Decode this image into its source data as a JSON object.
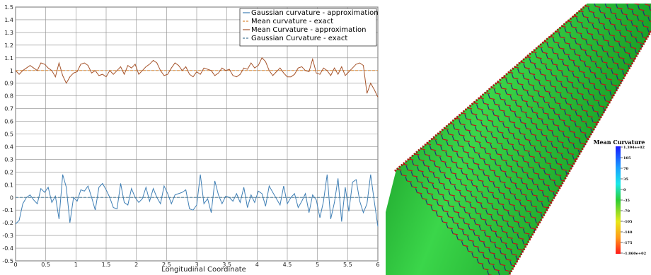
{
  "chart_data": {
    "type": "line",
    "xlabel": "Longitudinal Coordinate",
    "ylabel": "",
    "xlim": [
      0,
      6
    ],
    "ylim": [
      -0.5,
      1.5
    ],
    "x_ticks": [
      "0",
      "0.5",
      "1",
      "1.5",
      "2",
      "2.5",
      "3",
      "3.5",
      "4",
      "4.5",
      "5",
      "5.5",
      "6"
    ],
    "y_ticks": [
      "-0.5",
      "-0.4",
      "-0.3",
      "-0.2",
      "-0.1",
      "0",
      "0.1",
      "0.2",
      "0.3",
      "0.4",
      "0.5",
      "0.6",
      "0.7",
      "0.8",
      "0.9",
      "1",
      "1.1",
      "1.2",
      "1.3",
      "1.4",
      "1.5"
    ],
    "grid": true,
    "legend_position": "top-right",
    "series": [
      {
        "name": "Gaussian curvature - approximation",
        "color": "#3f7fb5",
        "style": "solid",
        "x": [
          0,
          0.06,
          0.12,
          0.18,
          0.24,
          0.3,
          0.36,
          0.42,
          0.48,
          0.54,
          0.6,
          0.66,
          0.72,
          0.78,
          0.84,
          0.9,
          0.96,
          1.02,
          1.08,
          1.14,
          1.2,
          1.26,
          1.32,
          1.38,
          1.44,
          1.5,
          1.56,
          1.62,
          1.68,
          1.74,
          1.8,
          1.86,
          1.92,
          1.98,
          2.04,
          2.1,
          2.16,
          2.22,
          2.28,
          2.34,
          2.4,
          2.46,
          2.52,
          2.58,
          2.64,
          2.7,
          2.76,
          2.82,
          2.88,
          2.94,
          3.0,
          3.06,
          3.12,
          3.18,
          3.24,
          3.3,
          3.36,
          3.42,
          3.48,
          3.54,
          3.6,
          3.66,
          3.72,
          3.78,
          3.84,
          3.9,
          3.96,
          4.02,
          4.08,
          4.14,
          4.2,
          4.26,
          4.32,
          4.38,
          4.44,
          4.5,
          4.56,
          4.62,
          4.68,
          4.74,
          4.8,
          4.86,
          4.92,
          4.98,
          5.04,
          5.1,
          5.16,
          5.22,
          5.28,
          5.34,
          5.4,
          5.46,
          5.52,
          5.58,
          5.64,
          5.7,
          5.76,
          5.82,
          5.88,
          5.94,
          6.0
        ],
        "values": [
          -0.21,
          -0.18,
          -0.05,
          0.0,
          0.02,
          -0.02,
          -0.05,
          0.07,
          0.04,
          0.08,
          -0.04,
          0.01,
          -0.17,
          0.18,
          0.08,
          -0.2,
          0.0,
          -0.03,
          0.06,
          0.05,
          0.09,
          0.0,
          -0.1,
          0.08,
          0.11,
          0.06,
          0.0,
          -0.08,
          -0.09,
          0.11,
          -0.04,
          -0.06,
          0.07,
          0.0,
          -0.04,
          -0.01,
          0.08,
          -0.03,
          0.07,
          0.0,
          -0.05,
          0.09,
          0.03,
          -0.05,
          0.02,
          0.03,
          0.04,
          0.06,
          -0.09,
          -0.1,
          -0.06,
          0.18,
          -0.05,
          -0.01,
          -0.12,
          0.13,
          0.02,
          -0.05,
          0.01,
          0.0,
          -0.03,
          0.03,
          -0.04,
          0.08,
          -0.08,
          0.02,
          -0.04,
          0.05,
          0.03,
          -0.07,
          0.09,
          0.04,
          -0.01,
          -0.06,
          0.09,
          -0.05,
          0.0,
          0.03,
          -0.08,
          -0.03,
          0.03,
          -0.12,
          0.02,
          -0.02,
          -0.16,
          -0.03,
          0.18,
          -0.17,
          -0.04,
          0.15,
          -0.19,
          0.08,
          -0.11,
          0.12,
          0.14,
          -0.03,
          -0.12,
          -0.05,
          0.18,
          -0.03,
          -0.23
        ]
      },
      {
        "name": "Mean curvature - exact",
        "color": "#d98a3a",
        "style": "dashed",
        "x": [
          0,
          6
        ],
        "values": [
          1.0,
          1.0
        ]
      },
      {
        "name": "Mean Curvature - approximation",
        "color": "#a5532a",
        "style": "solid",
        "x": [
          0,
          0.06,
          0.12,
          0.18,
          0.24,
          0.3,
          0.36,
          0.42,
          0.48,
          0.54,
          0.6,
          0.66,
          0.72,
          0.78,
          0.84,
          0.9,
          0.96,
          1.02,
          1.08,
          1.14,
          1.2,
          1.26,
          1.32,
          1.38,
          1.44,
          1.5,
          1.56,
          1.62,
          1.68,
          1.74,
          1.8,
          1.86,
          1.92,
          1.98,
          2.04,
          2.1,
          2.16,
          2.22,
          2.28,
          2.34,
          2.4,
          2.46,
          2.52,
          2.58,
          2.64,
          2.7,
          2.76,
          2.82,
          2.88,
          2.94,
          3.0,
          3.06,
          3.12,
          3.18,
          3.24,
          3.3,
          3.36,
          3.42,
          3.48,
          3.54,
          3.6,
          3.66,
          3.72,
          3.78,
          3.84,
          3.9,
          3.96,
          4.02,
          4.08,
          4.14,
          4.2,
          4.26,
          4.32,
          4.38,
          4.44,
          4.5,
          4.56,
          4.62,
          4.68,
          4.74,
          4.8,
          4.86,
          4.92,
          4.98,
          5.04,
          5.1,
          5.16,
          5.22,
          5.28,
          5.34,
          5.4,
          5.46,
          5.52,
          5.58,
          5.64,
          5.7,
          5.76,
          5.82,
          5.88,
          5.94,
          6.0
        ],
        "values": [
          1.0,
          0.97,
          1.0,
          1.02,
          1.04,
          1.02,
          1.0,
          1.06,
          1.05,
          1.02,
          1.0,
          0.95,
          1.06,
          0.96,
          0.9,
          0.95,
          0.98,
          0.99,
          1.05,
          1.06,
          1.04,
          0.98,
          1.0,
          0.96,
          0.97,
          0.95,
          1.0,
          0.97,
          1.0,
          1.03,
          0.97,
          1.04,
          1.02,
          1.05,
          0.97,
          1.0,
          1.03,
          1.05,
          1.08,
          1.06,
          1.0,
          0.96,
          0.97,
          1.02,
          1.06,
          1.04,
          1.0,
          1.03,
          0.97,
          0.95,
          0.99,
          0.97,
          1.02,
          1.01,
          1.0,
          0.96,
          0.98,
          1.02,
          1.0,
          1.01,
          0.96,
          0.95,
          0.97,
          1.02,
          1.01,
          1.06,
          1.02,
          1.04,
          1.1,
          1.07,
          1.0,
          0.96,
          0.99,
          1.02,
          0.98,
          0.95,
          0.95,
          0.97,
          1.02,
          1.03,
          1.0,
          0.99,
          1.09,
          0.98,
          0.97,
          1.02,
          1.0,
          0.96,
          1.02,
          0.97,
          1.03,
          0.96,
          0.99,
          1.02,
          1.05,
          1.06,
          1.04,
          0.82,
          0.9,
          0.85,
          0.79
        ]
      },
      {
        "name": "Gaussian Curvature - exact",
        "color": "#4a7a96",
        "style": "dashed",
        "x": [
          0,
          6
        ],
        "values": [
          0.0,
          0.0
        ]
      }
    ]
  },
  "visualization": {
    "surface_color": "#22c933",
    "colorbar": {
      "title": "Mean Curvature",
      "tick_labels": [
        "1.394e+02",
        "105",
        "70",
        "35",
        "0",
        "-35",
        "-70",
        "-105",
        "-140",
        "-175",
        "-1.860e+02"
      ]
    }
  }
}
